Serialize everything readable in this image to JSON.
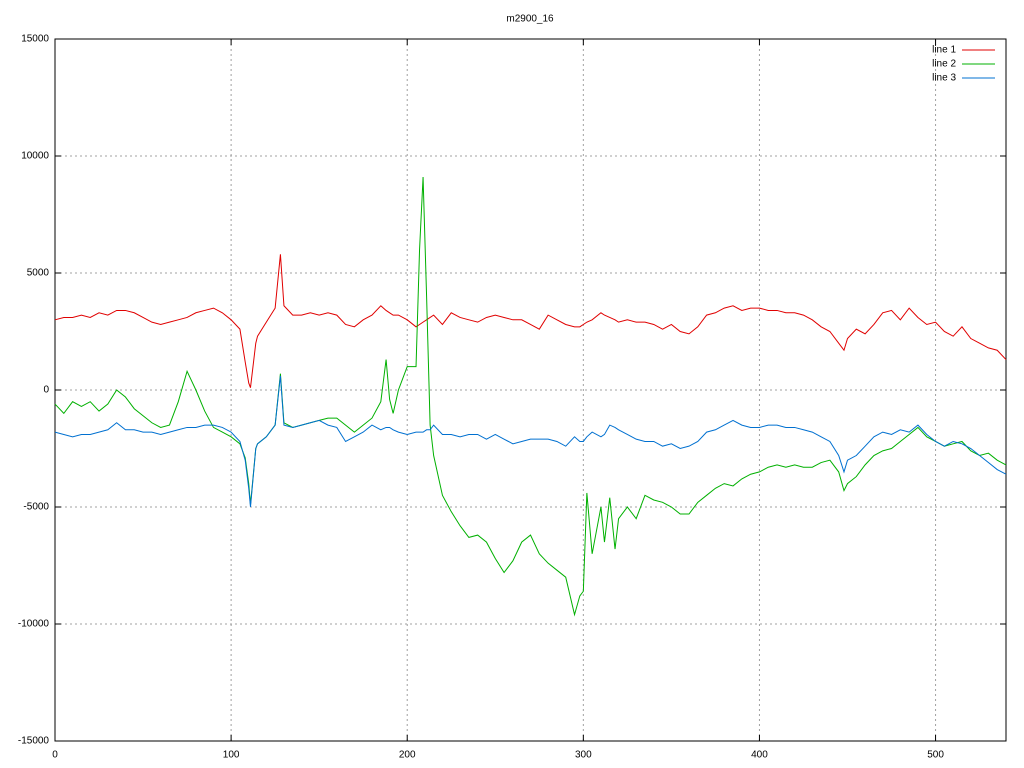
{
  "chart_data": {
    "type": "line",
    "title": "m2900_16",
    "x": [
      0,
      5,
      10,
      15,
      20,
      25,
      30,
      35,
      40,
      45,
      50,
      55,
      60,
      65,
      70,
      75,
      80,
      85,
      90,
      95,
      100,
      105,
      108,
      110,
      111,
      114,
      115,
      120,
      125,
      128,
      130,
      135,
      140,
      145,
      150,
      155,
      160,
      165,
      170,
      175,
      180,
      185,
      188,
      190,
      192,
      195,
      200,
      205,
      207,
      209,
      211,
      213,
      215,
      220,
      225,
      230,
      235,
      240,
      245,
      250,
      255,
      260,
      265,
      270,
      275,
      280,
      285,
      290,
      295,
      298,
      300,
      302,
      305,
      310,
      312,
      315,
      318,
      320,
      325,
      330,
      335,
      340,
      345,
      350,
      355,
      360,
      365,
      370,
      375,
      380,
      385,
      390,
      395,
      400,
      405,
      410,
      415,
      420,
      425,
      430,
      435,
      440,
      445,
      448,
      450,
      455,
      460,
      465,
      470,
      475,
      480,
      485,
      490,
      495,
      500,
      505,
      510,
      515,
      520,
      525,
      530,
      535,
      540
    ],
    "series": [
      {
        "name": "line 1",
        "color": "#e00000",
        "values": [
          3000,
          3100,
          3100,
          3200,
          3100,
          3300,
          3200,
          3400,
          3400,
          3300,
          3100,
          2900,
          2800,
          2900,
          3000,
          3100,
          3300,
          3400,
          3500,
          3300,
          3000,
          2600,
          1200,
          300,
          100,
          2000,
          2300,
          2900,
          3500,
          5800,
          3600,
          3200,
          3200,
          3300,
          3200,
          3300,
          3200,
          2800,
          2700,
          3000,
          3200,
          3600,
          3400,
          3300,
          3200,
          3200,
          3000,
          2700,
          2800,
          2900,
          3000,
          3100,
          3200,
          2800,
          3300,
          3100,
          3000,
          2900,
          3100,
          3200,
          3100,
          3000,
          3000,
          2800,
          2600,
          3200,
          3000,
          2800,
          2700,
          2700,
          2800,
          2900,
          3000,
          3300,
          3200,
          3100,
          3000,
          2900,
          3000,
          2900,
          2900,
          2800,
          2600,
          2800,
          2500,
          2400,
          2700,
          3200,
          3300,
          3500,
          3600,
          3400,
          3500,
          3500,
          3400,
          3400,
          3300,
          3300,
          3200,
          3000,
          2700,
          2500,
          2000,
          1700,
          2200,
          2600,
          2400,
          2800,
          3300,
          3400,
          3000,
          3500,
          3100,
          2800,
          2900,
          2500,
          2300,
          2700,
          2200,
          2000,
          1800,
          1700,
          1300
        ]
      },
      {
        "name": "line 2",
        "color": "#00b000",
        "values": [
          -600,
          -1000,
          -500,
          -700,
          -500,
          -900,
          -600,
          0,
          -300,
          -800,
          -1100,
          -1400,
          -1600,
          -1500,
          -500,
          800,
          0,
          -900,
          -1600,
          -1800,
          -2000,
          -2300,
          -2900,
          -4000,
          -4900,
          -2500,
          -2300,
          -2000,
          -1500,
          700,
          -1400,
          -1600,
          -1500,
          -1400,
          -1300,
          -1200,
          -1200,
          -1500,
          -1800,
          -1500,
          -1200,
          -500,
          1300,
          -400,
          -1000,
          0,
          1000,
          1000,
          6000,
          9100,
          4000,
          -1500,
          -2800,
          -4500,
          -5200,
          -5800,
          -6300,
          -6200,
          -6500,
          -7200,
          -7800,
          -7300,
          -6500,
          -6200,
          -7000,
          -7400,
          -7700,
          -8000,
          -9600,
          -8800,
          -8600,
          -4400,
          -7000,
          -5000,
          -6500,
          -4600,
          -6800,
          -5500,
          -5000,
          -5500,
          -4500,
          -4700,
          -4800,
          -5000,
          -5300,
          -5300,
          -4800,
          -4500,
          -4200,
          -4000,
          -4100,
          -3800,
          -3600,
          -3500,
          -3300,
          -3200,
          -3300,
          -3200,
          -3300,
          -3300,
          -3100,
          -3000,
          -3500,
          -4300,
          -4000,
          -3700,
          -3200,
          -2800,
          -2600,
          -2500,
          -2200,
          -1900,
          -1600,
          -2000,
          -2200,
          -2400,
          -2300,
          -2200,
          -2600,
          -2800,
          -2700,
          -3000,
          -3200
        ]
      },
      {
        "name": "line 3",
        "color": "#0070d0",
        "values": [
          -1800,
          -1900,
          -2000,
          -1900,
          -1900,
          -1800,
          -1700,
          -1400,
          -1700,
          -1700,
          -1800,
          -1800,
          -1900,
          -1800,
          -1700,
          -1600,
          -1600,
          -1500,
          -1500,
          -1600,
          -1800,
          -2200,
          -3000,
          -4200,
          -5000,
          -2500,
          -2300,
          -2000,
          -1500,
          600,
          -1500,
          -1600,
          -1500,
          -1400,
          -1300,
          -1500,
          -1600,
          -2200,
          -2000,
          -1800,
          -1500,
          -1700,
          -1600,
          -1600,
          -1700,
          -1800,
          -1900,
          -1800,
          -1800,
          -1800,
          -1700,
          -1700,
          -1500,
          -1900,
          -1900,
          -2000,
          -1900,
          -1900,
          -2100,
          -1900,
          -2100,
          -2300,
          -2200,
          -2100,
          -2100,
          -2100,
          -2200,
          -2400,
          -2000,
          -2200,
          -2200,
          -2000,
          -1800,
          -2000,
          -1900,
          -1500,
          -1600,
          -1700,
          -1900,
          -2100,
          -2200,
          -2200,
          -2400,
          -2300,
          -2500,
          -2400,
          -2200,
          -1800,
          -1700,
          -1500,
          -1300,
          -1500,
          -1600,
          -1600,
          -1500,
          -1500,
          -1600,
          -1600,
          -1700,
          -1800,
          -2000,
          -2200,
          -2800,
          -3500,
          -3000,
          -2800,
          -2400,
          -2000,
          -1800,
          -1900,
          -1700,
          -1800,
          -1500,
          -1900,
          -2200,
          -2400,
          -2200,
          -2300,
          -2500,
          -2800,
          -3100,
          -3400,
          -3600
        ]
      }
    ],
    "xlim": [
      0,
      540
    ],
    "xticks": [
      0,
      100,
      200,
      300,
      400,
      500
    ],
    "ylim": [
      -15000,
      15000
    ],
    "yticks": [
      -15000,
      -10000,
      -5000,
      0,
      5000,
      10000,
      15000
    ],
    "grid": true,
    "legend": "top-right"
  }
}
